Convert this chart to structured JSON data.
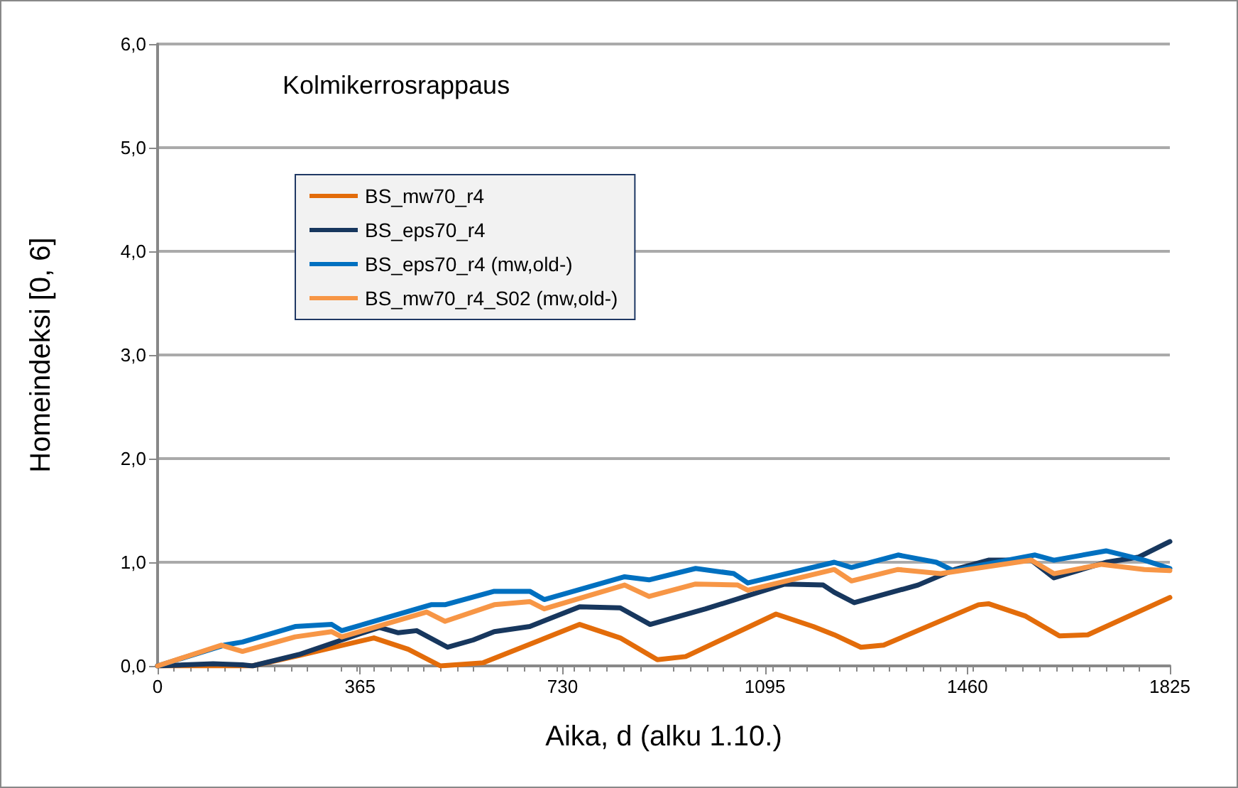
{
  "chart_data": {
    "type": "line",
    "xlabel": "Aika, d (alku 1.10.)",
    "ylabel": "Homeindeksi [0, 6]",
    "annotations": [
      "Kolmikerrosrappaus"
    ],
    "xlim": [
      0,
      1825
    ],
    "xticks": [
      0,
      365,
      730,
      1095,
      1460,
      1825
    ],
    "ylim": [
      0,
      6
    ],
    "yticks": [
      {
        "value": 0,
        "label": "0,0"
      },
      {
        "value": 1,
        "label": "1,0"
      },
      {
        "value": 2,
        "label": "2,0"
      },
      {
        "value": 3,
        "label": "3,0"
      },
      {
        "value": 4,
        "label": "4,0"
      },
      {
        "value": 5,
        "label": "5,0"
      },
      {
        "value": 6,
        "label": "6,0"
      }
    ],
    "grid": "y",
    "legend": "top left",
    "marker": "none",
    "line_style": "solid",
    "series": [
      {
        "name": "BS_mw70_r4",
        "color": "#e36c0a",
        "x": [
          0,
          100,
          171,
          255,
          390,
          452,
          510,
          587,
          761,
          834,
          901,
          952,
          1115,
          1182,
          1220,
          1268,
          1309,
          1480,
          1498,
          1565,
          1626,
          1677,
          1825
        ],
        "values": [
          0,
          0,
          0,
          0.1,
          0.27,
          0.16,
          0,
          0.03,
          0.4,
          0.27,
          0.06,
          0.09,
          0.5,
          0.38,
          0.3,
          0.18,
          0.2,
          0.59,
          0.6,
          0.48,
          0.29,
          0.3,
          0.66
        ]
      },
      {
        "name": "BS_eps70_r4",
        "color": "#17375e",
        "x": [
          0,
          100,
          153,
          171,
          255,
          365,
          400,
          434,
          467,
          523,
          569,
          607,
          671,
          761,
          834,
          888,
          988,
          1131,
          1200,
          1220,
          1256,
          1371,
          1437,
          1498,
          1575,
          1616,
          1710,
          1769,
          1825
        ],
        "values": [
          0,
          0.02,
          0.01,
          0,
          0.11,
          0.31,
          0.37,
          0.32,
          0.34,
          0.18,
          0.25,
          0.33,
          0.38,
          0.57,
          0.56,
          0.4,
          0.55,
          0.79,
          0.78,
          0.71,
          0.61,
          0.78,
          0.93,
          1.02,
          1.02,
          0.85,
          1.0,
          1.05,
          1.2
        ]
      },
      {
        "name": "BS_eps70_r4 (mw,old-)",
        "color": "#0070c0",
        "x": [
          0,
          120,
          153,
          248,
          314,
          332,
          493,
          518,
          607,
          671,
          697,
          842,
          886,
          970,
          1039,
          1064,
          1220,
          1251,
          1335,
          1404,
          1434,
          1582,
          1616,
          1710,
          1779,
          1825
        ],
        "values": [
          0,
          0.2,
          0.23,
          0.38,
          0.4,
          0.34,
          0.59,
          0.59,
          0.72,
          0.72,
          0.64,
          0.86,
          0.83,
          0.94,
          0.89,
          0.8,
          1.0,
          0.95,
          1.07,
          1.0,
          0.92,
          1.07,
          1.02,
          1.11,
          1.02,
          0.94
        ]
      },
      {
        "name": "BS_mw70_r4_S02 (mw,old-)",
        "color": "#f79646",
        "x": [
          0,
          115,
          153,
          248,
          314,
          332,
          485,
          518,
          607,
          671,
          697,
          842,
          886,
          970,
          1046,
          1064,
          1220,
          1251,
          1335,
          1412,
          1575,
          1616,
          1702,
          1779,
          1825
        ],
        "values": [
          0,
          0.2,
          0.14,
          0.28,
          0.33,
          0.28,
          0.52,
          0.43,
          0.59,
          0.62,
          0.55,
          0.78,
          0.67,
          0.79,
          0.78,
          0.73,
          0.93,
          0.82,
          0.93,
          0.89,
          1.02,
          0.89,
          0.98,
          0.93,
          0.92
        ]
      }
    ]
  }
}
